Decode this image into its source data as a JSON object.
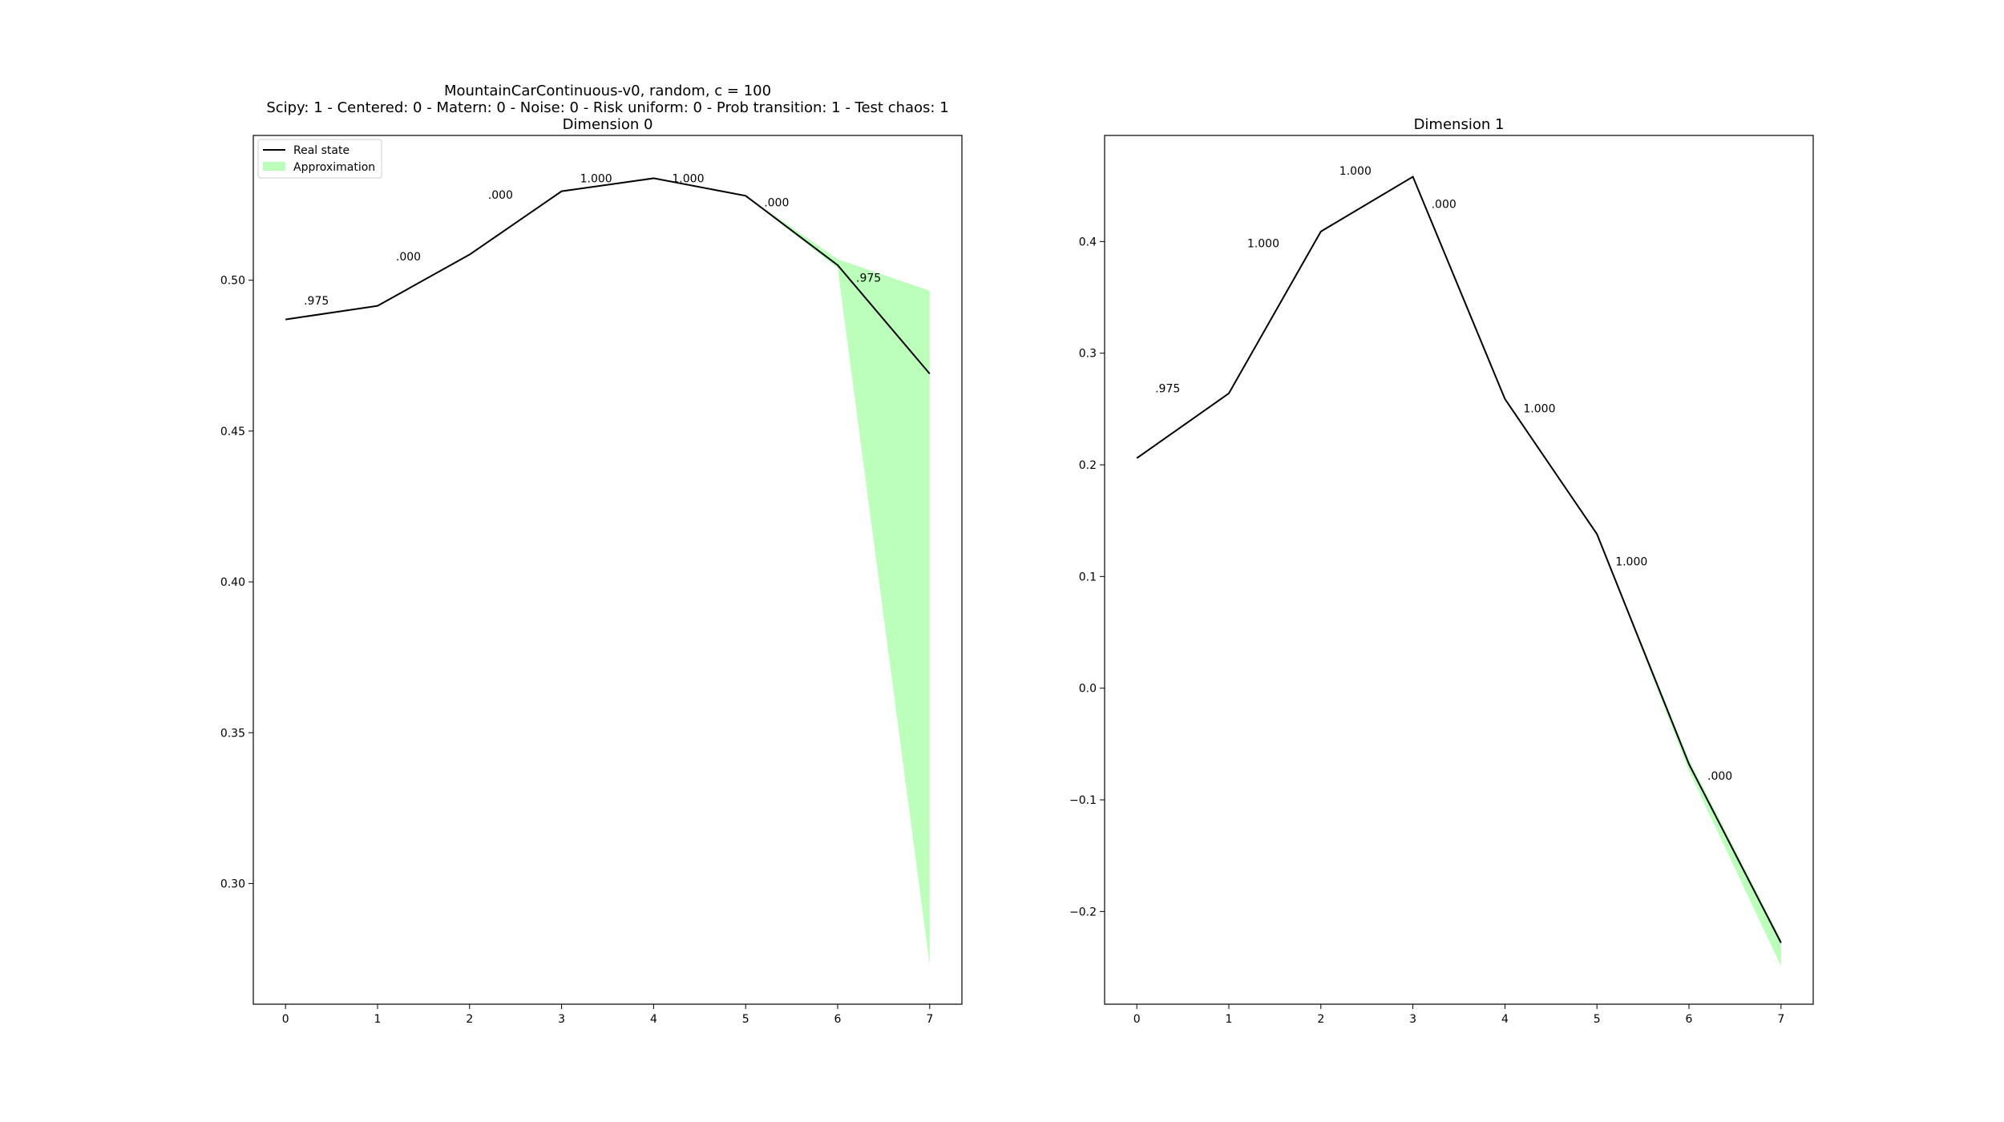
{
  "figure": {
    "suptitle_line1": "MountainCarContinuous-v0, random, c = 100",
    "suptitle_line2": "Scipy: 1 - Centered: 0 - Matern: 0 - Noise: 0 - Risk uniform: 0 - Prob transition: 1 - Test chaos: 1"
  },
  "colors": {
    "line": "#000000",
    "band": "#bbffbb",
    "axes": "#000000",
    "legend_border": "#cccccc"
  },
  "chart_data": [
    {
      "type": "line",
      "title": "Dimension 0",
      "xlabel": "",
      "ylabel": "",
      "x": [
        0,
        1,
        2,
        3,
        4,
        5,
        6,
        7
      ],
      "xlim": [
        -0.35,
        7.35
      ],
      "ylim": [
        0.26,
        0.548
      ],
      "xticks": [
        0,
        1,
        2,
        3,
        4,
        5,
        6,
        7
      ],
      "yticks": [
        0.3,
        0.35,
        0.4,
        0.45,
        0.5
      ],
      "ytick_labels": [
        "0.30",
        "0.35",
        "0.40",
        "0.45",
        "0.50"
      ],
      "grid": false,
      "legend_position": "top-left",
      "series": [
        {
          "name": "Real state",
          "kind": "line",
          "values": [
            0.487,
            0.4915,
            0.5085,
            0.5295,
            0.5338,
            0.528,
            0.505,
            0.469
          ]
        },
        {
          "name": "Approximation",
          "kind": "band",
          "lower": [
            0.487,
            0.4915,
            0.5085,
            0.5295,
            0.5338,
            0.528,
            0.504,
            0.273
          ],
          "upper": [
            0.487,
            0.4915,
            0.5085,
            0.5295,
            0.5338,
            0.528,
            0.507,
            0.4965
          ]
        }
      ],
      "annotations": [
        {
          "text": ".975",
          "x": 0.2,
          "y": 0.492
        },
        {
          "text": ".000",
          "x": 1.2,
          "y": 0.5065
        },
        {
          "text": ".000",
          "x": 2.2,
          "y": 0.527
        },
        {
          "text": "1.000",
          "x": 3.2,
          "y": 0.5325
        },
        {
          "text": "1.000",
          "x": 4.2,
          "y": 0.5325
        },
        {
          "text": ".000",
          "x": 5.2,
          "y": 0.5245
        },
        {
          "text": ".975",
          "x": 6.2,
          "y": 0.4995
        }
      ]
    },
    {
      "type": "line",
      "title": "Dimension 1",
      "xlabel": "",
      "ylabel": "",
      "x": [
        0,
        1,
        2,
        3,
        4,
        5,
        6,
        7
      ],
      "xlim": [
        -0.35,
        7.35
      ],
      "ylim": [
        -0.283,
        0.495
      ],
      "xticks": [
        0,
        1,
        2,
        3,
        4,
        5,
        6,
        7
      ],
      "yticks": [
        -0.2,
        -0.1,
        0.0,
        0.1,
        0.2,
        0.3,
        0.4
      ],
      "ytick_labels": [
        "−0.2",
        "−0.1",
        "0.0",
        "0.1",
        "0.2",
        "0.3",
        "0.4"
      ],
      "grid": false,
      "series": [
        {
          "name": "Real state",
          "kind": "line",
          "values": [
            0.206,
            0.264,
            0.409,
            0.458,
            0.259,
            0.138,
            -0.068,
            -0.228
          ]
        },
        {
          "name": "Approximation",
          "kind": "band",
          "lower": [
            0.206,
            0.264,
            0.409,
            0.458,
            0.259,
            0.138,
            -0.074,
            -0.249
          ],
          "upper": [
            0.206,
            0.264,
            0.409,
            0.458,
            0.259,
            0.138,
            -0.064,
            -0.225
          ]
        }
      ],
      "annotations": [
        {
          "text": ".975",
          "x": 0.2,
          "y": 0.265
        },
        {
          "text": "1.000",
          "x": 1.2,
          "y": 0.395
        },
        {
          "text": "1.000",
          "x": 2.2,
          "y": 0.46
        },
        {
          "text": ".000",
          "x": 3.2,
          "y": 0.43
        },
        {
          "text": "1.000",
          "x": 4.2,
          "y": 0.247
        },
        {
          "text": "1.000",
          "x": 5.2,
          "y": 0.11
        },
        {
          "text": ".000",
          "x": 6.2,
          "y": -0.082
        }
      ]
    }
  ]
}
